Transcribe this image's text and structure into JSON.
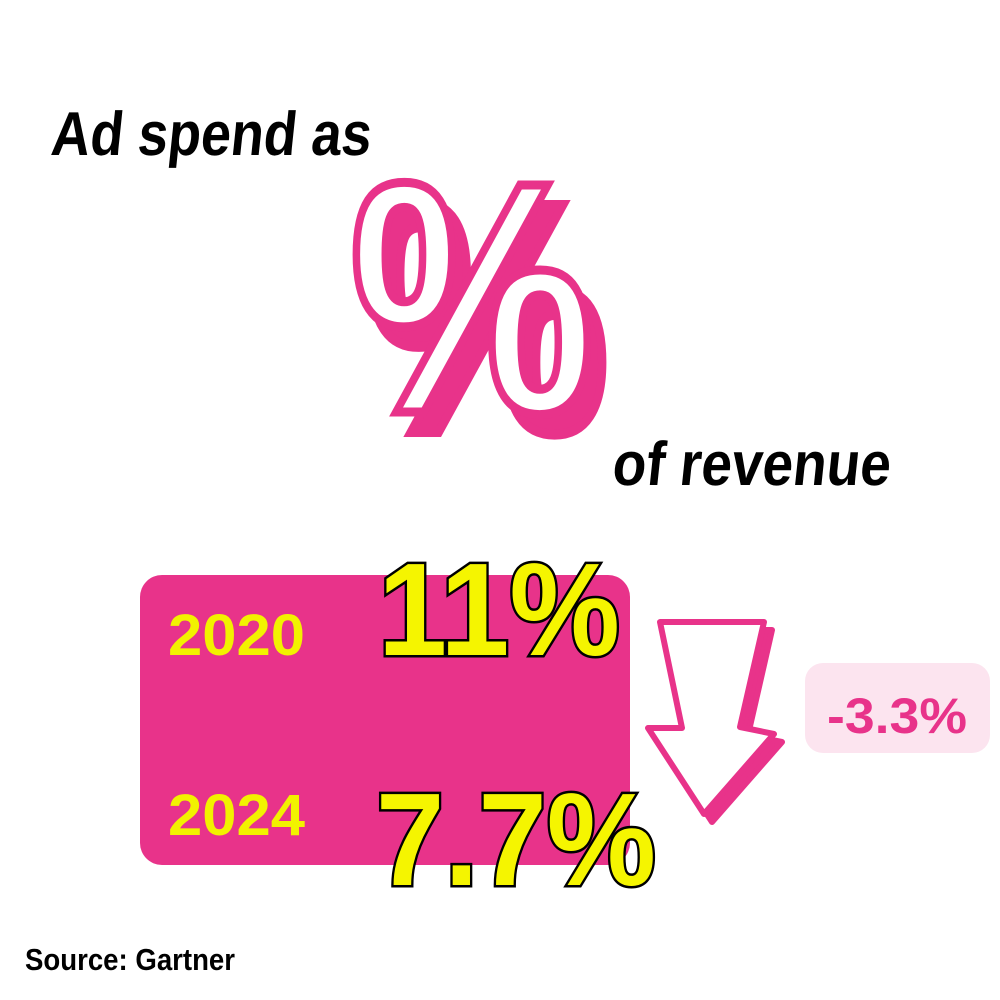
{
  "header": {
    "title_start": "Ad spend as",
    "symbol": "%",
    "title_end": "of revenue"
  },
  "rows": [
    {
      "year": "2020",
      "value": "11%"
    },
    {
      "year": "2024",
      "value": "7.7%"
    }
  ],
  "change": "-3.3%",
  "source": "Source: Gartner"
}
